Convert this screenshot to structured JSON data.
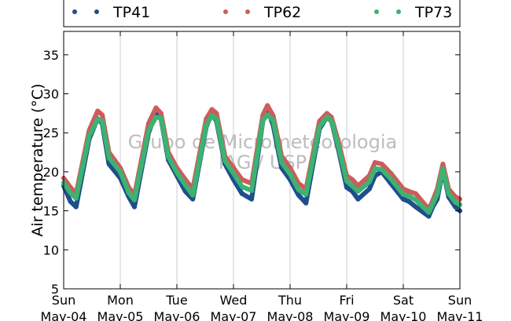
{
  "chart_data": {
    "type": "scatter",
    "title": "",
    "xlabel": "",
    "ylabel": "Air temperature (°C)",
    "ylim": [
      5,
      38
    ],
    "yticks": [
      5,
      10,
      15,
      20,
      25,
      30,
      35
    ],
    "xlim": [
      0,
      7
    ],
    "grid": "vertical",
    "legend_position": "top",
    "x_ticks": [
      {
        "x": 0,
        "day": "Sun",
        "date": "May-04"
      },
      {
        "x": 1,
        "day": "Mon",
        "date": "May-05"
      },
      {
        "x": 2,
        "day": "Tue",
        "date": "May-06"
      },
      {
        "x": 3,
        "day": "Wed",
        "date": "May-07"
      },
      {
        "x": 4,
        "day": "Thu",
        "date": "May-08"
      },
      {
        "x": 5,
        "day": "Fri",
        "date": "May-09"
      },
      {
        "x": 6,
        "day": "Sat",
        "date": "May-10"
      },
      {
        "x": 7,
        "day": "Sun",
        "date": "May-11"
      }
    ],
    "watermark": [
      "Grupo de Micrometeorologia",
      "IAG / USP"
    ],
    "series": [
      {
        "name": "TP41",
        "color": "#1f4e8c",
        "x": [
          0.0,
          0.12,
          0.22,
          0.45,
          0.6,
          0.68,
          0.8,
          1.0,
          1.15,
          1.25,
          1.5,
          1.63,
          1.72,
          1.85,
          2.0,
          2.15,
          2.28,
          2.52,
          2.62,
          2.7,
          2.85,
          3.0,
          3.15,
          3.32,
          3.52,
          3.6,
          3.7,
          3.85,
          4.0,
          4.15,
          4.28,
          4.52,
          4.65,
          4.73,
          4.85,
          5.0,
          5.1,
          5.2,
          5.4,
          5.5,
          5.62,
          5.78,
          6.0,
          6.1,
          6.22,
          6.45,
          6.52,
          6.6,
          6.7,
          6.8,
          6.92,
          7.0
        ],
        "y": [
          18.2,
          16.2,
          15.5,
          24.2,
          26.8,
          26.2,
          21.0,
          19.2,
          16.8,
          15.5,
          25.0,
          27.5,
          26.8,
          21.5,
          19.5,
          17.5,
          16.5,
          25.8,
          27.5,
          26.5,
          21.0,
          19.0,
          17.2,
          16.5,
          26.5,
          28.0,
          26.0,
          20.5,
          19.0,
          17.0,
          16.0,
          25.5,
          27.0,
          26.5,
          23.0,
          18.0,
          17.5,
          16.5,
          17.8,
          19.5,
          20.0,
          18.5,
          16.5,
          16.2,
          15.5,
          14.3,
          15.5,
          16.5,
          20.3,
          16.8,
          15.5,
          15.0
        ]
      },
      {
        "name": "TP62",
        "color": "#cd5c5c",
        "x": [
          0.0,
          0.12,
          0.22,
          0.45,
          0.6,
          0.68,
          0.8,
          1.0,
          1.15,
          1.25,
          1.5,
          1.63,
          1.72,
          1.85,
          2.0,
          2.15,
          2.28,
          2.52,
          2.62,
          2.7,
          2.85,
          3.0,
          3.15,
          3.32,
          3.52,
          3.6,
          3.7,
          3.85,
          4.0,
          4.15,
          4.28,
          4.52,
          4.65,
          4.73,
          4.85,
          5.0,
          5.1,
          5.2,
          5.4,
          5.5,
          5.62,
          5.78,
          6.0,
          6.1,
          6.22,
          6.45,
          6.52,
          6.6,
          6.7,
          6.8,
          6.92,
          7.0
        ],
        "y": [
          19.2,
          18.0,
          17.2,
          25.3,
          27.8,
          27.3,
          22.5,
          20.5,
          18.0,
          17.0,
          26.2,
          28.2,
          27.5,
          22.5,
          20.5,
          19.0,
          17.8,
          26.8,
          28.0,
          27.5,
          22.0,
          20.5,
          19.0,
          18.5,
          27.3,
          28.5,
          27.2,
          22.0,
          20.5,
          18.5,
          17.8,
          26.5,
          27.5,
          27.0,
          24.0,
          19.5,
          19.0,
          18.2,
          19.5,
          21.2,
          21.0,
          19.8,
          17.8,
          17.5,
          17.2,
          15.2,
          16.3,
          17.8,
          21.0,
          17.8,
          16.8,
          16.5
        ]
      },
      {
        "name": "TP73",
        "color": "#3cb371",
        "x": [
          0.0,
          0.12,
          0.22,
          0.45,
          0.6,
          0.68,
          0.8,
          1.0,
          1.15,
          1.25,
          1.5,
          1.63,
          1.72,
          1.85,
          2.0,
          2.15,
          2.28,
          2.52,
          2.62,
          2.7,
          2.85,
          3.0,
          3.15,
          3.32,
          3.52,
          3.6,
          3.7,
          3.85,
          4.0,
          4.15,
          4.28,
          4.52,
          4.65,
          4.73,
          4.85,
          5.0,
          5.1,
          5.2,
          5.4,
          5.5,
          5.62,
          5.78,
          6.0,
          6.1,
          6.22,
          6.45,
          6.52,
          6.6,
          6.7,
          6.8,
          6.92,
          7.0
        ],
        "y": [
          18.6,
          17.3,
          16.6,
          24.6,
          26.7,
          26.5,
          21.8,
          20.0,
          17.3,
          16.4,
          25.3,
          27.0,
          26.9,
          21.9,
          19.9,
          18.3,
          17.0,
          26.0,
          27.2,
          26.8,
          21.4,
          19.8,
          18.1,
          17.6,
          26.6,
          27.3,
          26.6,
          21.2,
          19.7,
          17.7,
          17.1,
          25.8,
          27.0,
          26.6,
          23.4,
          18.8,
          18.2,
          17.5,
          18.7,
          20.4,
          20.3,
          19.1,
          17.1,
          16.9,
          16.4,
          14.8,
          15.9,
          17.1,
          20.4,
          17.2,
          16.1,
          15.8
        ]
      }
    ]
  }
}
